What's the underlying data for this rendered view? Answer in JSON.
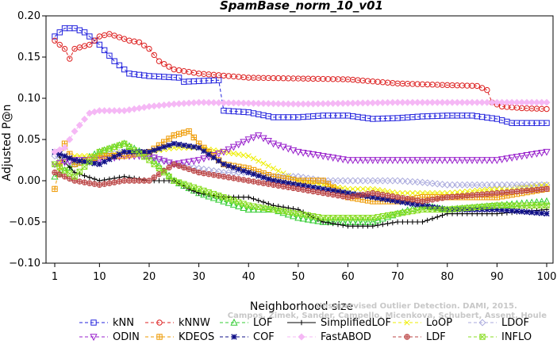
{
  "chart_data": {
    "type": "line",
    "title": "SpamBase_norm_10_v01",
    "xlabel": "Neighborhood size",
    "ylabel": "Adjusted P@n",
    "xlim": [
      1,
      100
    ],
    "ylim": [
      -0.1,
      0.2
    ],
    "x_ticks": [
      1,
      10,
      20,
      30,
      40,
      50,
      60,
      70,
      80,
      90,
      100
    ],
    "y_ticks": [
      -0.1,
      -0.05,
      0.0,
      0.05,
      0.1,
      0.15,
      0.2
    ],
    "x_tick_labels": [
      "1",
      "10",
      "20",
      "30",
      "40",
      "50",
      "60",
      "70",
      "80",
      "90",
      "100"
    ],
    "y_tick_labels": [
      "−0.10",
      "−0.05",
      "0.00",
      "0.05",
      "0.10",
      "0.15",
      "0.20"
    ],
    "grid": false,
    "legend_position": "bottom",
    "watermark": [
      "Campos, Zimek, Sander, Campello, Micenkova, Schubert, Assent, Houle",
      "Unsupervised Outlier Detection. DAMI, 2015."
    ],
    "series": [
      {
        "name": "kNN",
        "color": "#2222dd",
        "marker": "square",
        "dashed": true,
        "points": [
          [
            1,
            0.175
          ],
          [
            3,
            0.185
          ],
          [
            5,
            0.185
          ],
          [
            7,
            0.18
          ],
          [
            10,
            0.165
          ],
          [
            13,
            0.145
          ],
          [
            16,
            0.13
          ],
          [
            20,
            0.127
          ],
          [
            26,
            0.125
          ],
          [
            27,
            0.12
          ],
          [
            34,
            0.122
          ],
          [
            35,
            0.085
          ],
          [
            40,
            0.083
          ],
          [
            45,
            0.077
          ],
          [
            50,
            0.077
          ],
          [
            55,
            0.079
          ],
          [
            60,
            0.079
          ],
          [
            65,
            0.075
          ],
          [
            70,
            0.076
          ],
          [
            75,
            0.078
          ],
          [
            80,
            0.079
          ],
          [
            85,
            0.079
          ],
          [
            90,
            0.075
          ],
          [
            93,
            0.07
          ],
          [
            100,
            0.07
          ]
        ]
      },
      {
        "name": "kNNW",
        "color": "#dd2222",
        "marker": "circle",
        "dashed": true,
        "points": [
          [
            1,
            0.17
          ],
          [
            3,
            0.16
          ],
          [
            4,
            0.148
          ],
          [
            5,
            0.16
          ],
          [
            8,
            0.165
          ],
          [
            10,
            0.175
          ],
          [
            12,
            0.178
          ],
          [
            16,
            0.17
          ],
          [
            18,
            0.168
          ],
          [
            20,
            0.16
          ],
          [
            22,
            0.145
          ],
          [
            25,
            0.135
          ],
          [
            30,
            0.13
          ],
          [
            40,
            0.125
          ],
          [
            50,
            0.124
          ],
          [
            60,
            0.123
          ],
          [
            70,
            0.118
          ],
          [
            80,
            0.116
          ],
          [
            86,
            0.115
          ],
          [
            88,
            0.11
          ],
          [
            89,
            0.095
          ],
          [
            91,
            0.09
          ],
          [
            95,
            0.088
          ],
          [
            100,
            0.087
          ]
        ]
      },
      {
        "name": "LOF",
        "color": "#33cc33",
        "marker": "triangle-up",
        "dashed": true,
        "points": [
          [
            1,
            0.005
          ],
          [
            5,
            0.02
          ],
          [
            10,
            0.035
          ],
          [
            15,
            0.045
          ],
          [
            20,
            0.03
          ],
          [
            25,
            0.0
          ],
          [
            30,
            -0.015
          ],
          [
            35,
            -0.025
          ],
          [
            40,
            -0.035
          ],
          [
            45,
            -0.035
          ],
          [
            50,
            -0.045
          ],
          [
            55,
            -0.05
          ],
          [
            60,
            -0.05
          ],
          [
            65,
            -0.05
          ],
          [
            70,
            -0.04
          ],
          [
            75,
            -0.03
          ],
          [
            80,
            -0.035
          ],
          [
            90,
            -0.03
          ],
          [
            100,
            -0.025
          ]
        ]
      },
      {
        "name": "SimplifiedLOF",
        "color": "#000000",
        "marker": "plus",
        "dashed": false,
        "points": [
          [
            1,
            0.035
          ],
          [
            5,
            0.01
          ],
          [
            10,
            0.0
          ],
          [
            15,
            0.005
          ],
          [
            20,
            0.0
          ],
          [
            25,
            0.0
          ],
          [
            28,
            -0.01
          ],
          [
            30,
            -0.015
          ],
          [
            35,
            -0.02
          ],
          [
            40,
            -0.02
          ],
          [
            45,
            -0.03
          ],
          [
            50,
            -0.035
          ],
          [
            55,
            -0.05
          ],
          [
            60,
            -0.055
          ],
          [
            65,
            -0.055
          ],
          [
            70,
            -0.05
          ],
          [
            75,
            -0.05
          ],
          [
            80,
            -0.04
          ],
          [
            90,
            -0.04
          ],
          [
            100,
            -0.035
          ]
        ]
      },
      {
        "name": "LoOP",
        "color": "#eeee00",
        "marker": "x",
        "dashed": true,
        "points": [
          [
            1,
            0.02
          ],
          [
            5,
            0.03
          ],
          [
            10,
            0.03
          ],
          [
            15,
            0.035
          ],
          [
            20,
            0.035
          ],
          [
            25,
            0.04
          ],
          [
            30,
            0.04
          ],
          [
            35,
            0.035
          ],
          [
            40,
            0.03
          ],
          [
            45,
            0.015
          ],
          [
            50,
            0.0
          ],
          [
            55,
            -0.005
          ],
          [
            60,
            -0.01
          ],
          [
            65,
            -0.01
          ],
          [
            70,
            -0.015
          ],
          [
            75,
            -0.015
          ],
          [
            80,
            -0.015
          ],
          [
            90,
            -0.01
          ],
          [
            100,
            -0.005
          ]
        ]
      },
      {
        "name": "LDOF",
        "color": "#aaaadd",
        "marker": "diamond",
        "dashed": true,
        "points": [
          [
            1,
            0.03
          ],
          [
            5,
            0.02
          ],
          [
            10,
            0.03
          ],
          [
            15,
            0.035
          ],
          [
            20,
            0.03
          ],
          [
            25,
            0.02
          ],
          [
            30,
            0.015
          ],
          [
            35,
            0.01
          ],
          [
            40,
            0.01
          ],
          [
            45,
            0.005
          ],
          [
            50,
            0.005
          ],
          [
            55,
            0.0
          ],
          [
            60,
            0.0
          ],
          [
            65,
            0.0
          ],
          [
            70,
            0.0
          ],
          [
            75,
            -0.002
          ],
          [
            80,
            -0.005
          ],
          [
            90,
            -0.005
          ],
          [
            100,
            -0.005
          ]
        ]
      },
      {
        "name": "ODIN",
        "color": "#9922cc",
        "marker": "triangle-down",
        "dashed": true,
        "points": [
          [
            1,
            0.02
          ],
          [
            5,
            0.025
          ],
          [
            10,
            0.025
          ],
          [
            15,
            0.03
          ],
          [
            20,
            0.03
          ],
          [
            25,
            0.02
          ],
          [
            30,
            0.025
          ],
          [
            35,
            0.035
          ],
          [
            40,
            0.05
          ],
          [
            42,
            0.055
          ],
          [
            45,
            0.045
          ],
          [
            50,
            0.035
          ],
          [
            55,
            0.03
          ],
          [
            60,
            0.025
          ],
          [
            65,
            0.025
          ],
          [
            70,
            0.025
          ],
          [
            75,
            0.025
          ],
          [
            80,
            0.025
          ],
          [
            85,
            0.025
          ],
          [
            90,
            0.025
          ],
          [
            95,
            0.03
          ],
          [
            100,
            0.035
          ]
        ]
      },
      {
        "name": "KDEOS",
        "color": "#ee9900",
        "marker": "square-cross",
        "dashed": true,
        "points": [
          [
            1,
            -0.01
          ],
          [
            3,
            0.045
          ],
          [
            5,
            0.02
          ],
          [
            8,
            0.025
          ],
          [
            10,
            0.03
          ],
          [
            15,
            0.03
          ],
          [
            20,
            0.035
          ],
          [
            25,
            0.055
          ],
          [
            28,
            0.06
          ],
          [
            30,
            0.045
          ],
          [
            35,
            0.02
          ],
          [
            40,
            0.015
          ],
          [
            45,
            0.005
          ],
          [
            50,
            0.0
          ],
          [
            55,
            0.0
          ],
          [
            60,
            -0.02
          ],
          [
            65,
            -0.025
          ],
          [
            70,
            -0.025
          ],
          [
            75,
            -0.02
          ],
          [
            80,
            -0.02
          ],
          [
            90,
            -0.02
          ],
          [
            100,
            -0.01
          ]
        ]
      },
      {
        "name": "COF",
        "color": "#111188",
        "marker": "asterisk",
        "dashed": true,
        "points": [
          [
            1,
            0.035
          ],
          [
            5,
            0.025
          ],
          [
            10,
            0.02
          ],
          [
            15,
            0.035
          ],
          [
            20,
            0.035
          ],
          [
            25,
            0.045
          ],
          [
            30,
            0.04
          ],
          [
            35,
            0.02
          ],
          [
            40,
            0.01
          ],
          [
            45,
            0.0
          ],
          [
            50,
            -0.005
          ],
          [
            55,
            -0.01
          ],
          [
            60,
            -0.015
          ],
          [
            65,
            -0.02
          ],
          [
            70,
            -0.025
          ],
          [
            75,
            -0.03
          ],
          [
            80,
            -0.035
          ],
          [
            90,
            -0.035
          ],
          [
            100,
            -0.04
          ]
        ]
      },
      {
        "name": "FastABOD",
        "color": "#f5b8f5",
        "marker": "diamond-filled",
        "dashed": true,
        "points": [
          [
            1,
            0.035
          ],
          [
            3,
            0.04
          ],
          [
            5,
            0.06
          ],
          [
            8,
            0.082
          ],
          [
            10,
            0.085
          ],
          [
            15,
            0.085
          ],
          [
            20,
            0.09
          ],
          [
            25,
            0.093
          ],
          [
            30,
            0.095
          ],
          [
            40,
            0.094
          ],
          [
            50,
            0.093
          ],
          [
            60,
            0.094
          ],
          [
            70,
            0.095
          ],
          [
            80,
            0.095
          ],
          [
            90,
            0.095
          ],
          [
            100,
            0.095
          ]
        ]
      },
      {
        "name": "LDF",
        "color": "#bb4444",
        "marker": "circle-plus",
        "dashed": true,
        "points": [
          [
            1,
            0.01
          ],
          [
            5,
            0.0
          ],
          [
            10,
            -0.005
          ],
          [
            15,
            0.0
          ],
          [
            20,
            0.0
          ],
          [
            25,
            0.02
          ],
          [
            30,
            0.01
          ],
          [
            35,
            0.005
          ],
          [
            40,
            0.0
          ],
          [
            45,
            -0.005
          ],
          [
            50,
            -0.01
          ],
          [
            55,
            -0.015
          ],
          [
            60,
            -0.02
          ],
          [
            65,
            -0.015
          ],
          [
            70,
            -0.02
          ],
          [
            75,
            -0.025
          ],
          [
            80,
            -0.02
          ],
          [
            90,
            -0.015
          ],
          [
            100,
            -0.01
          ]
        ]
      },
      {
        "name": "INFLO",
        "color": "#88dd22",
        "marker": "square-x",
        "dashed": true,
        "points": [
          [
            1,
            0.02
          ],
          [
            5,
            0.005
          ],
          [
            10,
            0.035
          ],
          [
            15,
            0.045
          ],
          [
            20,
            0.025
          ],
          [
            25,
            0.0
          ],
          [
            30,
            -0.01
          ],
          [
            35,
            -0.02
          ],
          [
            40,
            -0.03
          ],
          [
            45,
            -0.035
          ],
          [
            50,
            -0.04
          ],
          [
            55,
            -0.045
          ],
          [
            60,
            -0.045
          ],
          [
            65,
            -0.045
          ],
          [
            70,
            -0.04
          ],
          [
            75,
            -0.035
          ],
          [
            80,
            -0.035
          ],
          [
            90,
            -0.03
          ],
          [
            100,
            -0.03
          ]
        ]
      }
    ]
  }
}
